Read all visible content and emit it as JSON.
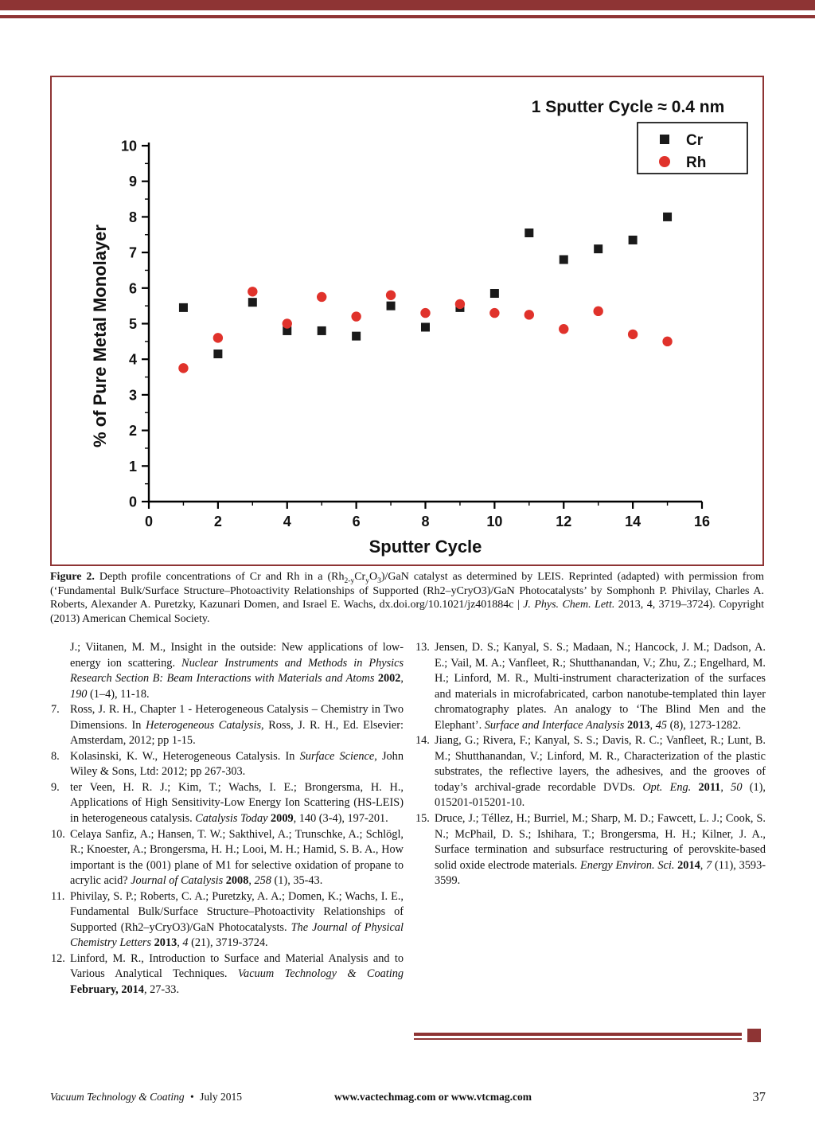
{
  "page": {
    "accent_color": "#8e3434",
    "footer": {
      "journal_name": "Vacuum Technology & Coating",
      "separator": "•",
      "issue_date": "July 2015",
      "website_text": "www.vactechmag.com or www.vtcmag.com",
      "page_number": "37"
    }
  },
  "figure": {
    "caption": [
      {
        "t": "Figure 2.",
        "s": "b"
      },
      {
        "t": " Depth profile concentrations of Cr and Rh in a (Rh",
        "s": ""
      },
      {
        "t": "2-y",
        "s": "sub"
      },
      {
        "t": "Cr",
        "s": ""
      },
      {
        "t": "y",
        "s": "sub"
      },
      {
        "t": "O",
        "s": ""
      },
      {
        "t": "3",
        "s": "sub"
      },
      {
        "t": ")/GaN catalyst as determined by LEIS. Reprinted (adapted) with permission from (‘Fundamental Bulk/Surface Structure–Photoactivity Relationships of Supported (Rh2–yCryO3)/GaN Photocatalysts’ by Somphonh P. Phivilay, Charles A. Roberts, Alexander A. Puretzky, Kazunari Domen, and Israel E. Wachs, dx.doi.org/10.1021/jz401884c | ",
        "s": ""
      },
      {
        "t": "J. Phys. Chem. Lett.",
        "s": "i"
      },
      {
        "t": " 2013, 4, 3719–3724). Copyright (2013) American Chemical Society.",
        "s": ""
      }
    ]
  },
  "chart_data": {
    "type": "scatter",
    "annotation": "1 Sputter Cycle ≈ 0.4 nm",
    "xlabel": "Sputter Cycle",
    "ylabel": "% of Pure Metal Monolayer",
    "xlim": [
      0,
      16
    ],
    "ylim": [
      0,
      10
    ],
    "xticks": [
      0,
      2,
      4,
      6,
      8,
      10,
      12,
      14,
      16
    ],
    "yticks": [
      0,
      1,
      2,
      3,
      4,
      5,
      6,
      7,
      8,
      9,
      10
    ],
    "grid": false,
    "legend_position": "top-right",
    "series": [
      {
        "name": "Cr",
        "marker": "square",
        "color": "#1a1a1a",
        "x": [
          1,
          2,
          3,
          4,
          5,
          6,
          7,
          8,
          9,
          10,
          11,
          12,
          13,
          14,
          15
        ],
        "y": [
          5.45,
          4.15,
          5.6,
          4.8,
          4.8,
          4.65,
          5.5,
          4.9,
          5.45,
          5.85,
          7.55,
          6.8,
          7.1,
          7.35,
          8.0
        ]
      },
      {
        "name": "Rh",
        "marker": "circle",
        "color": "#e0322b",
        "x": [
          1,
          2,
          3,
          4,
          5,
          6,
          7,
          8,
          9,
          10,
          11,
          12,
          13,
          14,
          15
        ],
        "y": [
          3.75,
          4.6,
          5.9,
          5.0,
          5.75,
          5.2,
          5.8,
          5.3,
          5.55,
          5.3,
          5.25,
          4.85,
          5.35,
          4.7,
          4.5
        ]
      }
    ]
  },
  "references": {
    "left_column": [
      {
        "number": "",
        "segments": [
          {
            "t": "J.; Viitanen, M. M., Insight in the outside: New applications of low-energy ion scattering. ",
            "s": ""
          },
          {
            "t": "Nuclear Instruments and Methods in Physics Research Section B: Beam Interactions with Materials and Atoms",
            "s": "i"
          },
          {
            "t": " ",
            "s": ""
          },
          {
            "t": "2002",
            "s": "b"
          },
          {
            "t": ", ",
            "s": ""
          },
          {
            "t": "190",
            "s": "i"
          },
          {
            "t": " (1–4), 11-18.",
            "s": ""
          }
        ]
      },
      {
        "number": "7.",
        "segments": [
          {
            "t": "Ross, J. R. H., Chapter 1 - Heterogeneous Catalysis – Chemistry in Two Dimensions. In ",
            "s": ""
          },
          {
            "t": "Heterogeneous Catalysis",
            "s": "i"
          },
          {
            "t": ", Ross, J. R. H., Ed. Elsevier: Amsterdam, 2012; pp 1-15.",
            "s": ""
          }
        ]
      },
      {
        "number": "8.",
        "segments": [
          {
            "t": "Kolasinski, K. W., Heterogeneous Catalysis. In ",
            "s": ""
          },
          {
            "t": "Surface Science",
            "s": "i"
          },
          {
            "t": ", John Wiley & Sons, Ltd: 2012; pp 267-303.",
            "s": ""
          }
        ]
      },
      {
        "number": "9.",
        "segments": [
          {
            "t": "ter Veen, H. R. J.; Kim, T.; Wachs, I. E.; Brongersma, H. H., Applications of High Sensitivity-Low Energy Ion Scattering (HS-LEIS) in heterogeneous catalysis. ",
            "s": ""
          },
          {
            "t": "Catalysis Today",
            "s": "i"
          },
          {
            "t": " ",
            "s": ""
          },
          {
            "t": "2009",
            "s": "b"
          },
          {
            "t": ", 140 (3-4), 197-201.",
            "s": ""
          }
        ]
      },
      {
        "number": "10.",
        "segments": [
          {
            "t": "Celaya Sanfiz, A.; Hansen, T. W.; Sakthivel, A.; Trunschke, A.; Schlögl, R.; Knoester, A.; Brongersma, H. H.; Looi, M. H.; Hamid, S. B. A., How important is the (001) plane of M1 for selective oxidation of propane to acrylic acid? ",
            "s": ""
          },
          {
            "t": "Journal of Catalysis",
            "s": "i"
          },
          {
            "t": " ",
            "s": ""
          },
          {
            "t": "2008",
            "s": "b"
          },
          {
            "t": ", ",
            "s": ""
          },
          {
            "t": "258",
            "s": "i"
          },
          {
            "t": " (1), 35-43.",
            "s": ""
          }
        ]
      },
      {
        "number": "11.",
        "segments": [
          {
            "t": "Phivilay, S. P.; Roberts, C. A.; Puretzky, A. A.; Domen, K.; Wachs, I. E., Fundamental Bulk/Surface Structure–Photoactivity Relationships of Supported (Rh2–yCryO3)/GaN Photocatalysts. ",
            "s": ""
          },
          {
            "t": "The Journal of Physical Chemistry Letters",
            "s": "i"
          },
          {
            "t": " ",
            "s": ""
          },
          {
            "t": "2013",
            "s": "b"
          },
          {
            "t": ", ",
            "s": ""
          },
          {
            "t": "4",
            "s": "i"
          },
          {
            "t": " (21), 3719-3724.",
            "s": ""
          }
        ]
      },
      {
        "number": "12.",
        "segments": [
          {
            "t": "Linford, M. R., Introduction to Surface and Material Analysis and to Various Analytical Techniques. ",
            "s": ""
          },
          {
            "t": "Vacuum Technology & Coating",
            "s": "i"
          },
          {
            "t": " ",
            "s": ""
          },
          {
            "t": "February, 2014",
            "s": "b"
          },
          {
            "t": ", 27-33.",
            "s": ""
          }
        ]
      }
    ],
    "right_column": [
      {
        "number": "13.",
        "segments": [
          {
            "t": "Jensen, D. S.; Kanyal, S. S.; Madaan, N.; Hancock, J. M.; Dadson, A. E.; Vail, M. A.; Vanfleet, R.; Shutthanandan, V.; Zhu, Z.; Engelhard, M. H.; Linford, M. R., Multi-instrument characterization of the surfaces and materials in microfabricated, carbon nanotube-templated thin layer chromatography plates. An analogy to ‘The Blind Men and the Elephant’. ",
            "s": ""
          },
          {
            "t": "Surface and Interface Analysis",
            "s": "i"
          },
          {
            "t": " ",
            "s": ""
          },
          {
            "t": "2013",
            "s": "b"
          },
          {
            "t": ", ",
            "s": ""
          },
          {
            "t": "45",
            "s": "i"
          },
          {
            "t": " (8), 1273-1282.",
            "s": ""
          }
        ]
      },
      {
        "number": "14.",
        "segments": [
          {
            "t": "Jiang, G.; Rivera, F.; Kanyal, S. S.; Davis, R. C.; Vanfleet, R.; Lunt, B. M.; Shutthanandan, V.; Linford, M. R., Characterization of the plastic substrates, the reflective layers, the adhesives, and the grooves of today’s archival-grade recordable DVDs. ",
            "s": ""
          },
          {
            "t": "Opt. Eng.",
            "s": "i"
          },
          {
            "t": " ",
            "s": ""
          },
          {
            "t": "2011",
            "s": "b"
          },
          {
            "t": ", ",
            "s": ""
          },
          {
            "t": "50",
            "s": "i"
          },
          {
            "t": " (1), 015201-015201-10.",
            "s": ""
          }
        ]
      },
      {
        "number": "15.",
        "segments": [
          {
            "t": "Druce, J.; Téllez, H.; Burriel, M.; Sharp, M. D.; Fawcett, L. J.; Cook, S. N.; McPhail, D. S.; Ishihara, T.; Brongersma, H. H.; Kilner, J. A., Surface termination and subsurface restructuring of perovskite-based solid oxide electrode materials. ",
            "s": ""
          },
          {
            "t": "Energy Environ. Sci.",
            "s": "i"
          },
          {
            "t": " ",
            "s": ""
          },
          {
            "t": "2014",
            "s": "b"
          },
          {
            "t": ", ",
            "s": ""
          },
          {
            "t": "7",
            "s": "i"
          },
          {
            "t": " (11), 3593-3599.",
            "s": ""
          }
        ]
      }
    ]
  }
}
